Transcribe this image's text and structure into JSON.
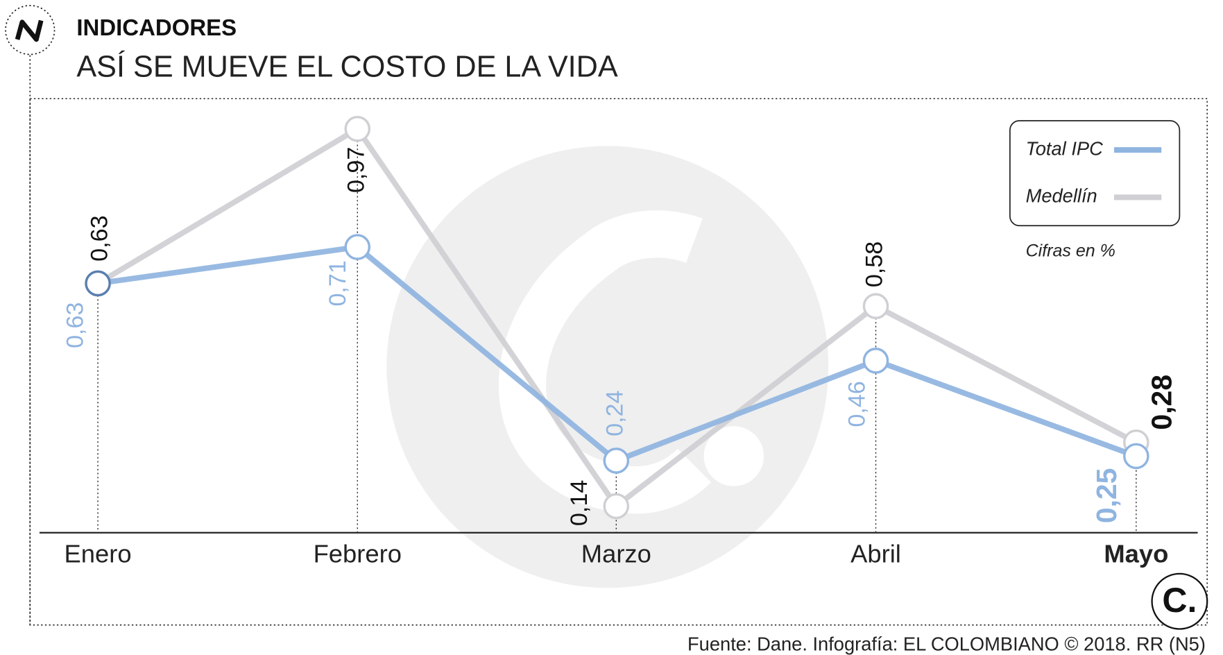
{
  "header": "INDICADORES",
  "chart_data": {
    "type": "line",
    "title": "ASÍ SE MUEVE EL COSTO DE LA VIDA",
    "categories": [
      "Enero",
      "Febrero",
      "Marzo",
      "Abril",
      "Mayo"
    ],
    "series": [
      {
        "name": "Total IPC",
        "color": "#8fb4e0",
        "values": [
          0.63,
          0.71,
          0.24,
          0.46,
          0.25
        ],
        "value_labels": [
          "0,63",
          "0,71",
          "0,24",
          "0,46",
          "0,25"
        ]
      },
      {
        "name": "Medellín",
        "color": "#cfcfd4",
        "values": [
          0.63,
          0.97,
          0.14,
          0.58,
          0.28
        ],
        "value_labels": [
          "0,63",
          "0,97",
          "0,14",
          "0,58",
          "0,28"
        ]
      }
    ],
    "note": "Cifras en %",
    "source": "Fuente: Dane. Infografía: EL COLOMBIANO © 2018. RR (N5)"
  },
  "logo": "C."
}
